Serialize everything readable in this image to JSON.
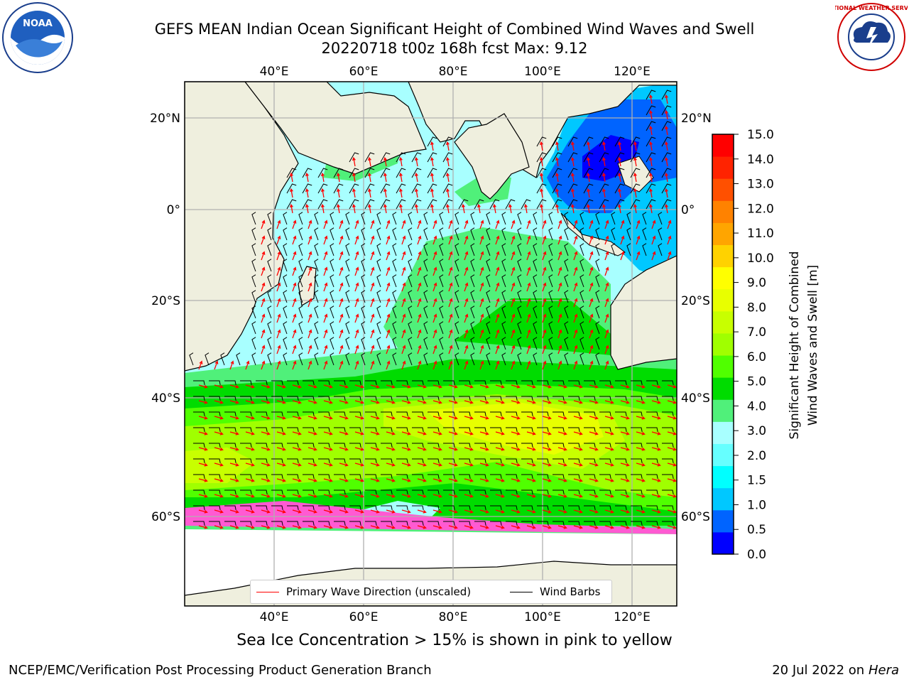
{
  "header": {
    "title_line1": "GEFS MEAN Indian Ocean Significant Height of Combined Wind Waves and Swell",
    "title_line2": "20220718 t00z 168h fcst   Max: 9.12"
  },
  "logos": {
    "left": {
      "name": "NOAA",
      "ring_text": "NATIONAL OCEANIC AND ATMOSPHERIC ADMINISTRATION · U.S. DEPARTMENT OF COMMERCE"
    },
    "right": {
      "name": "NATIONAL WEATHER SERVICE"
    }
  },
  "map": {
    "lon_labels": [
      "40°E",
      "60°E",
      "80°E",
      "100°E",
      "120°E"
    ],
    "lat_labels": [
      "20°N",
      "0°",
      "20°S",
      "40°S",
      "60°S"
    ],
    "extent": {
      "lon": [
        20,
        130
      ],
      "lat": [
        -72,
        28
      ]
    },
    "colors": {
      "land": "#efefde",
      "ice_free_white": "#ffffff",
      "coast": "#000000",
      "grid": "#b0b0b0",
      "wave_arrow": "#ff0000",
      "wind_barb": "#000000"
    }
  },
  "legend": {
    "wave_label": "Primary Wave Direction (unscaled)",
    "barb_label": "Wind Barbs",
    "wave_color": "#ff0000",
    "barb_color": "#000000"
  },
  "colorbar": {
    "label_line1": "Significant Height of Combined",
    "label_line2": "Wind Waves and Swell [m]",
    "ticks": [
      "15.0",
      "14.0",
      "13.0",
      "12.0",
      "11.0",
      "10.0",
      "9.0",
      "8.0",
      "7.0",
      "6.0",
      "5.0",
      "4.0",
      "3.0",
      "2.0",
      "1.5",
      "1.0",
      "0.5",
      "0.0"
    ],
    "colors_bottom_to_top": [
      "#0000ff",
      "#0064ff",
      "#00c8ff",
      "#00ffff",
      "#66ffff",
      "#a8ffff",
      "#50f07a",
      "#00dc00",
      "#50ff00",
      "#a0ff00",
      "#c8ff00",
      "#e8ff00",
      "#ffff00",
      "#ffd200",
      "#ffa500",
      "#ff8200",
      "#ff5000",
      "#ff2300",
      "#ff0000"
    ]
  },
  "caption": "Sea Ice Concentration > 15% is shown in pink to yellow",
  "footer": {
    "left": "NCEP/EMC/Verification Post Processing Product Generation Branch",
    "right_date": "20 Jul 2022 on ",
    "right_host": "Hera"
  }
}
